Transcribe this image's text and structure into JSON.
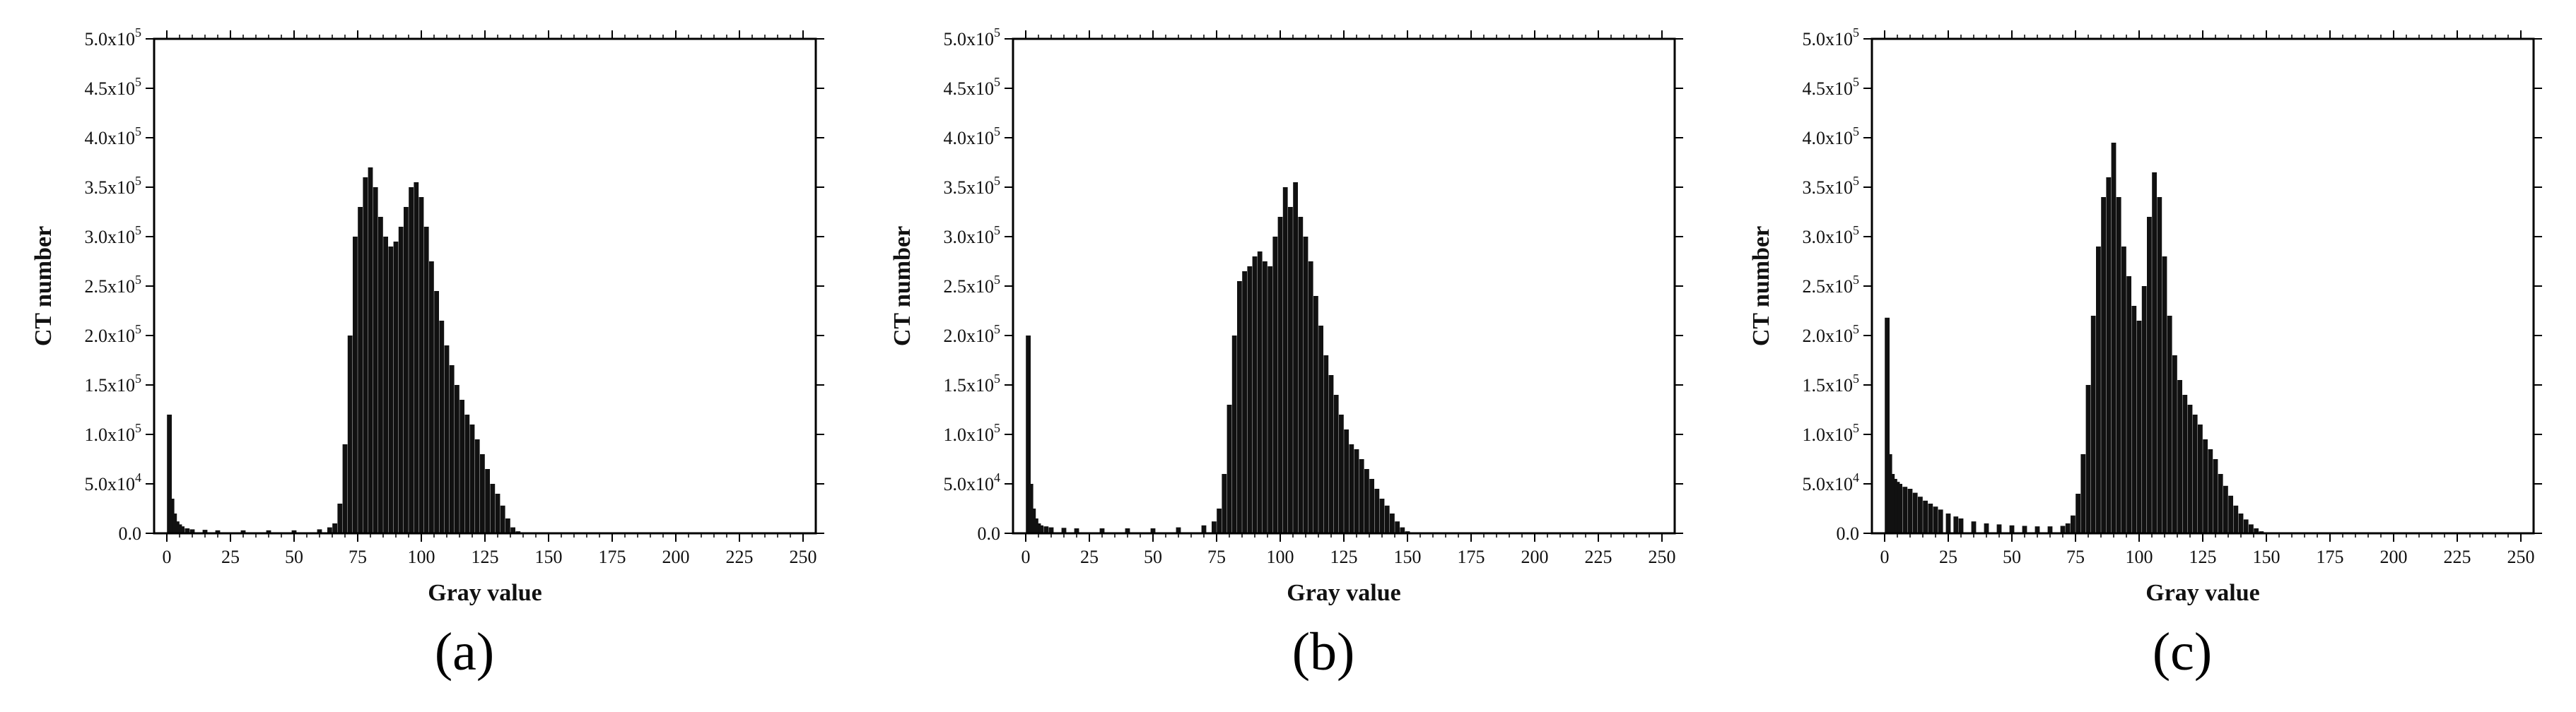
{
  "chart_data": [
    {
      "id": "a",
      "type": "bar",
      "panel_label": "(a)",
      "xlabel": "Gray value",
      "ylabel": "CT number",
      "xlim": [
        -5,
        255
      ],
      "ylim": [
        0,
        500000
      ],
      "x_ticks": [
        "0",
        "25",
        "50",
        "75",
        "100",
        "125",
        "150",
        "175",
        "200",
        "225",
        "250"
      ],
      "y_ticks": [
        "0.0",
        "5.0x10^4",
        "1.0x10^5",
        "1.5x10^5",
        "2.0x10^5",
        "2.5x10^5",
        "3.0x10^5",
        "3.5x10^5",
        "4.0x10^5",
        "4.5x10^5",
        "5.0x10^5"
      ],
      "bar_color": "#111111",
      "x": [
        1,
        2,
        3,
        4,
        5,
        6,
        8,
        10,
        15,
        20,
        30,
        40,
        50,
        60,
        64,
        66,
        68,
        70,
        72,
        74,
        76,
        78,
        80,
        82,
        84,
        86,
        88,
        90,
        92,
        94,
        96,
        98,
        100,
        102,
        104,
        106,
        108,
        110,
        112,
        114,
        116,
        118,
        120,
        122,
        124,
        126,
        128,
        130,
        132,
        134,
        136,
        138
      ],
      "values": [
        120000,
        35000,
        20000,
        12000,
        9000,
        7000,
        5000,
        4000,
        3500,
        3000,
        3000,
        3000,
        3000,
        4000,
        6000,
        10000,
        30000,
        90000,
        200000,
        300000,
        330000,
        360000,
        370000,
        350000,
        320000,
        300000,
        290000,
        295000,
        310000,
        330000,
        350000,
        355000,
        340000,
        310000,
        275000,
        245000,
        215000,
        190000,
        170000,
        150000,
        135000,
        120000,
        110000,
        95000,
        80000,
        65000,
        50000,
        40000,
        28000,
        15000,
        6000,
        2000
      ]
    },
    {
      "id": "b",
      "type": "bar",
      "panel_label": "(b)",
      "xlabel": "Gray value",
      "ylabel": "CT number",
      "xlim": [
        -5,
        255
      ],
      "ylim": [
        0,
        500000
      ],
      "x_ticks": [
        "0",
        "25",
        "50",
        "75",
        "100",
        "125",
        "150",
        "175",
        "200",
        "225",
        "250"
      ],
      "y_ticks": [
        "0.0",
        "5.0x10^4",
        "1.0x10^5",
        "1.5x10^5",
        "2.0x10^5",
        "2.5x10^5",
        "3.0x10^5",
        "3.5x10^5",
        "4.0x10^5",
        "4.5x10^5",
        "5.0x10^5"
      ],
      "bar_color": "#111111",
      "x": [
        1,
        2,
        3,
        4,
        5,
        6,
        8,
        10,
        15,
        20,
        30,
        40,
        50,
        60,
        70,
        74,
        76,
        78,
        80,
        82,
        84,
        86,
        88,
        90,
        92,
        94,
        96,
        98,
        100,
        102,
        104,
        106,
        108,
        110,
        112,
        114,
        116,
        118,
        120,
        122,
        124,
        126,
        128,
        130,
        132,
        134,
        136,
        138,
        140,
        142,
        144,
        146,
        148,
        150,
        152
      ],
      "values": [
        200000,
        50000,
        25000,
        15000,
        10000,
        8000,
        7000,
        6000,
        5500,
        5000,
        5000,
        5000,
        5000,
        6000,
        8000,
        12000,
        25000,
        60000,
        130000,
        200000,
        255000,
        265000,
        270000,
        280000,
        285000,
        275000,
        270000,
        300000,
        320000,
        350000,
        330000,
        355000,
        320000,
        300000,
        275000,
        240000,
        210000,
        180000,
        160000,
        140000,
        120000,
        105000,
        90000,
        85000,
        75000,
        65000,
        55000,
        45000,
        35000,
        28000,
        20000,
        12000,
        6000,
        2000,
        500
      ]
    },
    {
      "id": "c",
      "type": "bar",
      "panel_label": "(c)",
      "xlabel": "Gray value",
      "ylabel": "CT number",
      "xlim": [
        -5,
        255
      ],
      "ylim": [
        0,
        500000
      ],
      "x_ticks": [
        "0",
        "25",
        "50",
        "75",
        "100",
        "125",
        "150",
        "175",
        "200",
        "225",
        "250"
      ],
      "y_ticks": [
        "0.0",
        "5.0x10^4",
        "1.0x10^5",
        "1.5x10^5",
        "2.0x10^5",
        "2.5x10^5",
        "3.0x10^5",
        "3.5x10^5",
        "4.0x10^5",
        "4.5x10^5",
        "5.0x10^5"
      ],
      "bar_color": "#111111",
      "x": [
        1,
        2,
        3,
        4,
        5,
        6,
        8,
        10,
        12,
        14,
        16,
        18,
        20,
        22,
        25,
        28,
        30,
        35,
        40,
        45,
        50,
        55,
        60,
        65,
        70,
        72,
        74,
        76,
        78,
        80,
        82,
        84,
        86,
        88,
        90,
        92,
        94,
        96,
        98,
        100,
        102,
        104,
        106,
        108,
        110,
        112,
        114,
        116,
        118,
        120,
        122,
        124,
        126,
        128,
        130,
        132,
        134,
        136,
        138,
        140,
        142,
        144,
        146,
        148,
        150
      ],
      "values": [
        218000,
        80000,
        60000,
        55000,
        52000,
        50000,
        47000,
        45000,
        41000,
        37000,
        33000,
        30000,
        27000,
        24000,
        20000,
        17000,
        15000,
        12000,
        10000,
        9000,
        8000,
        7500,
        7000,
        7000,
        7500,
        10000,
        18000,
        40000,
        80000,
        150000,
        220000,
        290000,
        340000,
        360000,
        395000,
        340000,
        290000,
        260000,
        230000,
        215000,
        250000,
        320000,
        365000,
        340000,
        280000,
        220000,
        180000,
        155000,
        140000,
        130000,
        120000,
        110000,
        95000,
        85000,
        75000,
        60000,
        48000,
        38000,
        28000,
        20000,
        14000,
        9000,
        5000,
        2000,
        500
      ]
    }
  ]
}
